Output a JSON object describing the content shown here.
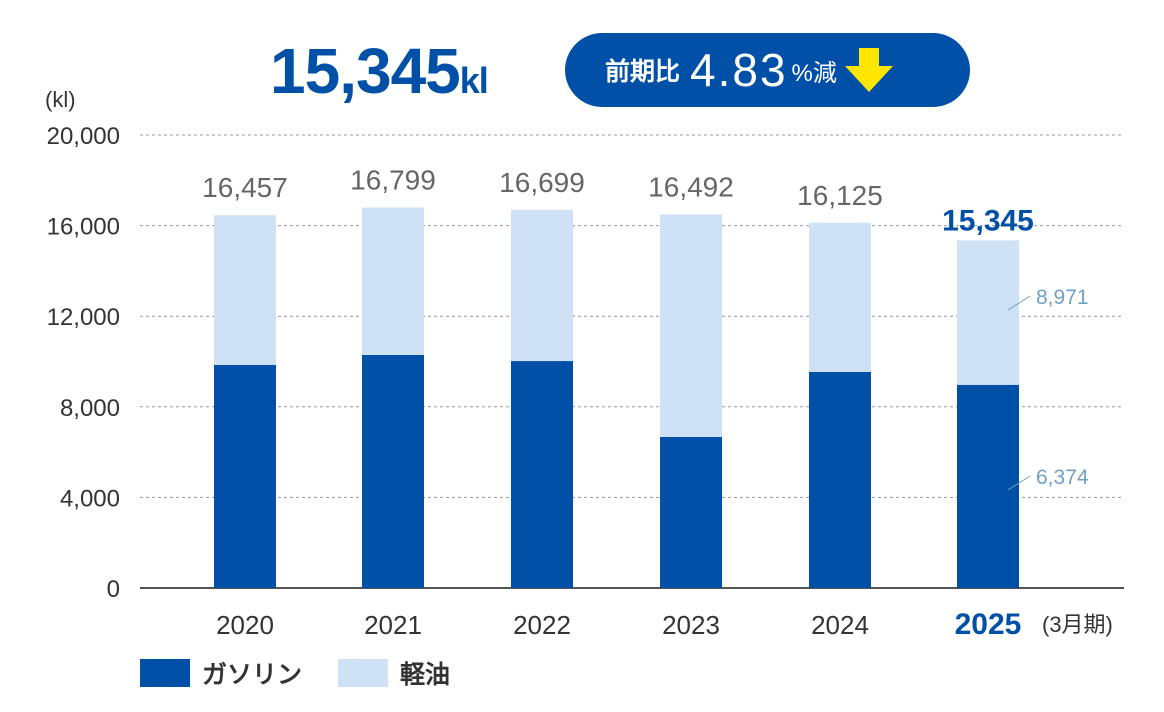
{
  "header": {
    "total_value": "15,345",
    "total_unit": "kl",
    "change_prefix": "前期比",
    "change_value": "4.83",
    "change_suffix": "%減",
    "arrow_icon": "arrow-down-icon"
  },
  "colors": {
    "gasoline": "#0050a8",
    "diesel": "#cfe1f4",
    "accent": "#0050a8",
    "arrow": "#ffe600"
  },
  "chart_data": {
    "type": "bar",
    "stacked": true,
    "categories": [
      "2020",
      "2021",
      "2022",
      "2023",
      "2024",
      "2025"
    ],
    "category_suffix": "(3月期)",
    "ylabel": "(kl)",
    "ylim": [
      0,
      20000
    ],
    "yticks": [
      "0",
      "4,000",
      "8,000",
      "12,000",
      "16,000",
      "20,000"
    ],
    "ytick_values": [
      0,
      4000,
      8000,
      12000,
      16000,
      20000
    ],
    "grid": true,
    "series": [
      {
        "name": "ガソリン",
        "values": [
          9850,
          10290,
          10020,
          6670,
          9540,
          8971
        ]
      },
      {
        "name": "軽油",
        "values": [
          6607,
          6509,
          6679,
          9822,
          6585,
          6374
        ]
      }
    ],
    "totals": [
      "16,457",
      "16,799",
      "16,699",
      "16,492",
      "16,125",
      "15,345"
    ],
    "total_values": [
      16457,
      16799,
      16699,
      16492,
      16125,
      15345
    ],
    "annotations": [
      "8,971",
      "6,374"
    ],
    "legend": "bottom-left"
  }
}
